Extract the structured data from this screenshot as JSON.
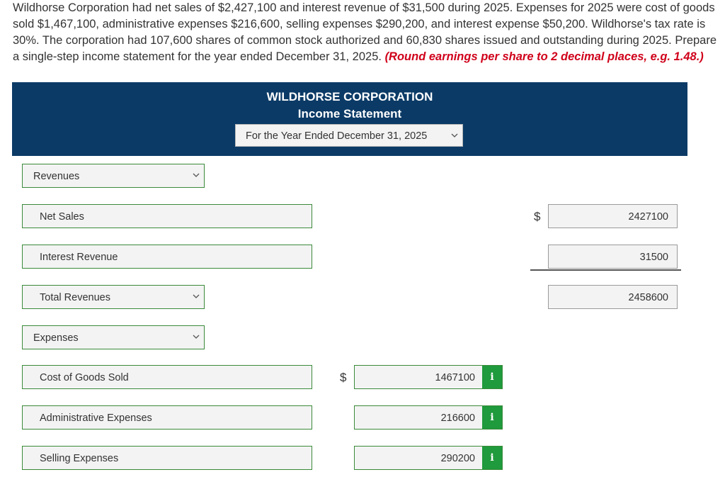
{
  "problem": {
    "text": "Wildhorse Corporation had net sales of $2,427,100 and interest revenue of $31,500 during 2025. Expenses for 2025 were cost of goods sold $1,467,100, administrative expenses $216,600, selling expenses $290,200, and interest expense $50,200. Wildhorse's tax rate is 30%. The corporation had 107,600 shares of common stock authorized and 60,830 shares issued and outstanding during 2025. Prepare a single-step income statement for the year ended December 31, 2025.",
    "hint": "(Round earnings per share to 2 decimal places, e.g. 1.48.)"
  },
  "header": {
    "company": "WILDHORSE CORPORATION",
    "statement": "Income Statement",
    "period": "For the Year Ended December 31, 2025"
  },
  "rows": {
    "revenues_heading": "Revenues",
    "net_sales": {
      "label": "Net Sales",
      "currency": "$",
      "value": "2427100"
    },
    "interest_revenue": {
      "label": "Interest Revenue",
      "value": "31500"
    },
    "total_revenues": {
      "label": "Total Revenues",
      "value": "2458600"
    },
    "expenses_heading": "Expenses",
    "cogs": {
      "label": "Cost of Goods Sold",
      "currency": "$",
      "value": "1467100"
    },
    "admin": {
      "label": "Administrative Expenses",
      "value": "216600"
    },
    "selling": {
      "label": "Selling Expenses",
      "value": "290200"
    }
  },
  "icons": {
    "info": "i",
    "dropdown": "chevron-down-icon"
  },
  "colors": {
    "header_bg": "#0b3a66",
    "field_border": "#3a8a3a",
    "info_bg": "#1f9a3c",
    "hint": "#d0021b"
  }
}
